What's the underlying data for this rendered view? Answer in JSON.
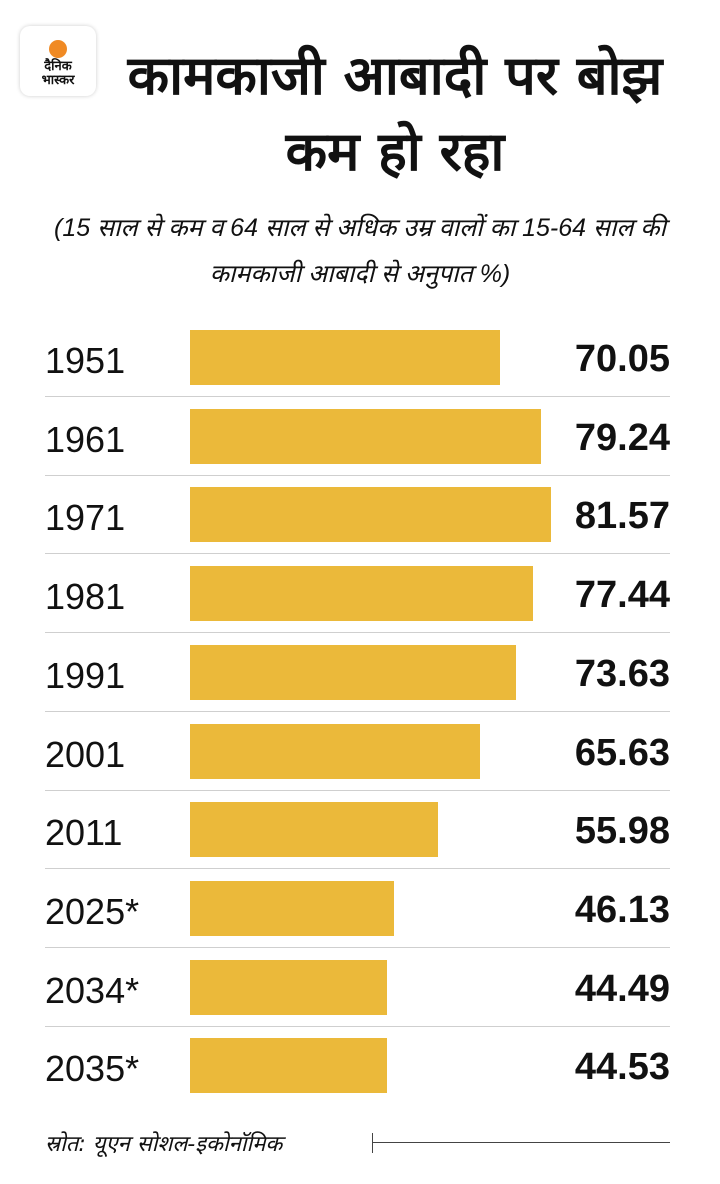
{
  "logo": {
    "line1": "दैनिक",
    "line2": "भास्कर"
  },
  "chart_data": {
    "type": "bar",
    "orientation": "horizontal",
    "title": "कामकाजी आबादी पर बोझ कम हो रहा",
    "subtitle": "(15 साल से कम व 64 साल से अधिक उम्र वालों का 15-64 साल की कामकाजी आबादी से अनुपात %)",
    "categories": [
      "1951",
      "1961",
      "1971",
      "1981",
      "1991",
      "2001",
      "2011",
      "2025*",
      "2034*",
      "2035*"
    ],
    "values": [
      70.05,
      79.24,
      81.57,
      77.44,
      73.63,
      65.63,
      55.98,
      46.13,
      44.49,
      44.53
    ],
    "labels": [
      "70.05",
      "79.24",
      "81.57",
      "77.44",
      "73.63",
      "65.63",
      "55.98",
      "46.13",
      "44.49",
      "44.53"
    ],
    "xlim": [
      0,
      81.57
    ],
    "bar_color": "#ebb93a",
    "source": "स्रोत: यूएन सोशल-इकोनॉमिक"
  }
}
